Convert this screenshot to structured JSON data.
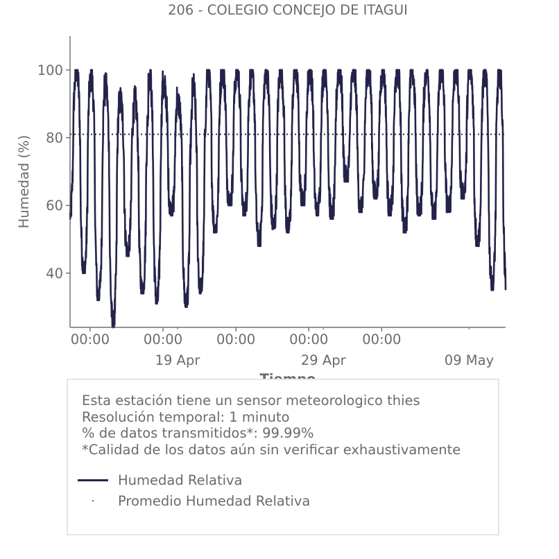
{
  "chart_data": {
    "type": "line",
    "title": "206 - COLEGIO CONCEJO DE ITAGUI",
    "xlabel": "Tiempo",
    "ylabel": "Humedad (%)",
    "ylim": [
      24,
      110
    ],
    "xlim": [
      "2024-04-11 15:00",
      "2024-05-11 12:00"
    ],
    "yticks": [
      40,
      60,
      80,
      100
    ],
    "xticks_major": [
      "00:00",
      "00:00",
      "00:00",
      "00:00",
      "00:00"
    ],
    "xticks_date": [
      "19 Apr",
      "29 Apr",
      "09 May"
    ],
    "grid": false,
    "series": [
      {
        "name": "Humedad Relativa",
        "color": "#23234a",
        "style": "solid",
        "daily_max": [
          100,
          100,
          98,
          95,
          91,
          91,
          99,
          95,
          90,
          95,
          100,
          100,
          100,
          100,
          100,
          100,
          100,
          100,
          100,
          100,
          99,
          100,
          100,
          100,
          100,
          100,
          100,
          100,
          100,
          100
        ],
        "daily_min": [
          56,
          40,
          32,
          24,
          45,
          34,
          31,
          57,
          30,
          34,
          52,
          60,
          57,
          48,
          53,
          52,
          60,
          57,
          56,
          67,
          58,
          62,
          57,
          52,
          57,
          56,
          58,
          62,
          48,
          35
        ]
      },
      {
        "name": "Promedio Humedad Relativa",
        "color": "#23234a",
        "style": "dotted",
        "value": 81
      }
    ]
  },
  "info": {
    "line1": "Esta estación tiene un sensor meteorologico thies",
    "line2": "Resolución temporal: 1 minuto",
    "line3": "% de datos transmitidos*: 99.99%",
    "line4": "*Calidad de los datos aún sin verificar exhaustivamente"
  },
  "legend": {
    "item1": "Humedad Relativa",
    "item2": "Promedio Humedad Relativa"
  },
  "colors": {
    "series": "#23234a",
    "text": "#6b6b6b",
    "axis": "#555555",
    "box_border": "#e5e5e5"
  }
}
